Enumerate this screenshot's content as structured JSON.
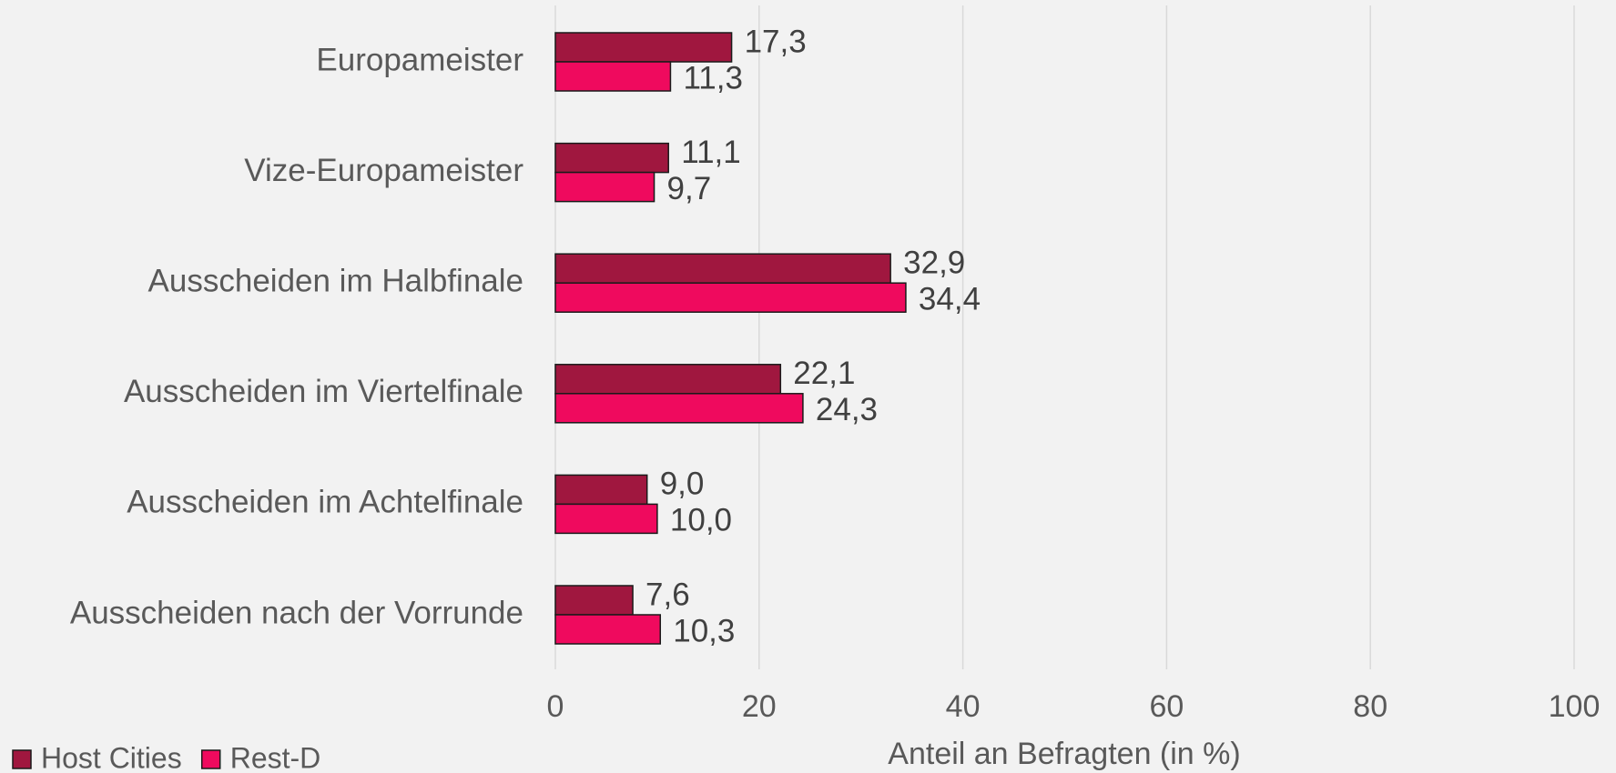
{
  "chart_data": {
    "type": "hbar",
    "categories": [
      "Europameister",
      "Vize-Europameister",
      "Ausscheiden im Halbfinale",
      "Ausscheiden im Viertelfinale",
      "Ausscheiden im Achtelfinale",
      "Ausscheiden nach der Vorrunde"
    ],
    "series": [
      {
        "name": "Host Cities",
        "color": "#a0173f",
        "values": [
          17.3,
          11.1,
          32.9,
          22.1,
          9.0,
          7.6
        ],
        "value_labels": [
          "17,3",
          "11,1",
          "32,9",
          "22,1",
          "9,0",
          "7,6"
        ]
      },
      {
        "name": "Rest-D",
        "color": "#ef0a5e",
        "values": [
          11.3,
          9.7,
          34.4,
          24.3,
          10.0,
          10.3
        ],
        "value_labels": [
          "11,3",
          "9,7",
          "34,4",
          "24,3",
          "10,0",
          "10,3"
        ]
      }
    ],
    "xlim": [
      0,
      100
    ],
    "xticks": [
      0,
      20,
      40,
      60,
      80,
      100
    ],
    "xlabel": "Anteil an Befragten (in %)",
    "grid": true,
    "legend": "bottom-left"
  }
}
